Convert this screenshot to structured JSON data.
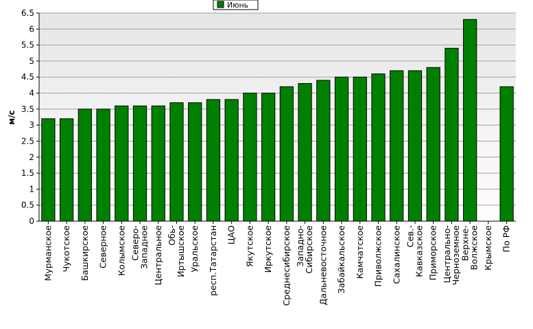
{
  "chart_data": {
    "type": "bar",
    "ylabel": "м/с",
    "ylim": [
      0,
      6.5
    ],
    "ytick_step": 0.5,
    "ytick_labels": [
      "0",
      "0.5",
      "1",
      "1.5",
      "2",
      "2.5",
      "3",
      "3.5",
      "4",
      "4.5",
      "5",
      "5.5",
      "6",
      "6.5"
    ],
    "grid": true,
    "legend_position": "top-center",
    "series": [
      {
        "name": "Июнь",
        "color": "#008000",
        "values": [
          3.2,
          3.2,
          3.5,
          3.5,
          3.6,
          3.6,
          3.6,
          3.7,
          3.7,
          3.8,
          3.8,
          4.0,
          4.0,
          4.2,
          4.3,
          4.4,
          4.5,
          4.5,
          4.6,
          4.7,
          4.7,
          4.8,
          5.4,
          6.3,
          0,
          4.2
        ]
      }
    ],
    "categories": [
      [
        "Мурманское"
      ],
      [
        "Чукотское"
      ],
      [
        "Башкирское"
      ],
      [
        "Северное"
      ],
      [
        "Колымское"
      ],
      [
        "Северо-",
        "Западное"
      ],
      [
        "Центральное"
      ],
      [
        "Обь-",
        "Иртышское"
      ],
      [
        "Уральское"
      ],
      [
        "респ.Татарстан"
      ],
      [
        "ЦАО"
      ],
      [
        "Якутское"
      ],
      [
        "Иркутское"
      ],
      [
        "Среднесибирское"
      ],
      [
        "Западно-",
        "Сибирское"
      ],
      [
        "Дальневосточное"
      ],
      [
        "Забайкальское"
      ],
      [
        "Камчатское"
      ],
      [
        "Приволжское"
      ],
      [
        "Сахалинское"
      ],
      [
        "Сев.-",
        "Кавказское"
      ],
      [
        "Приморское"
      ],
      [
        "Центрально-",
        "Черноземное"
      ],
      [
        "Верхне-",
        "Волжское"
      ],
      [
        "Крымское"
      ],
      [
        "По РФ"
      ]
    ]
  }
}
